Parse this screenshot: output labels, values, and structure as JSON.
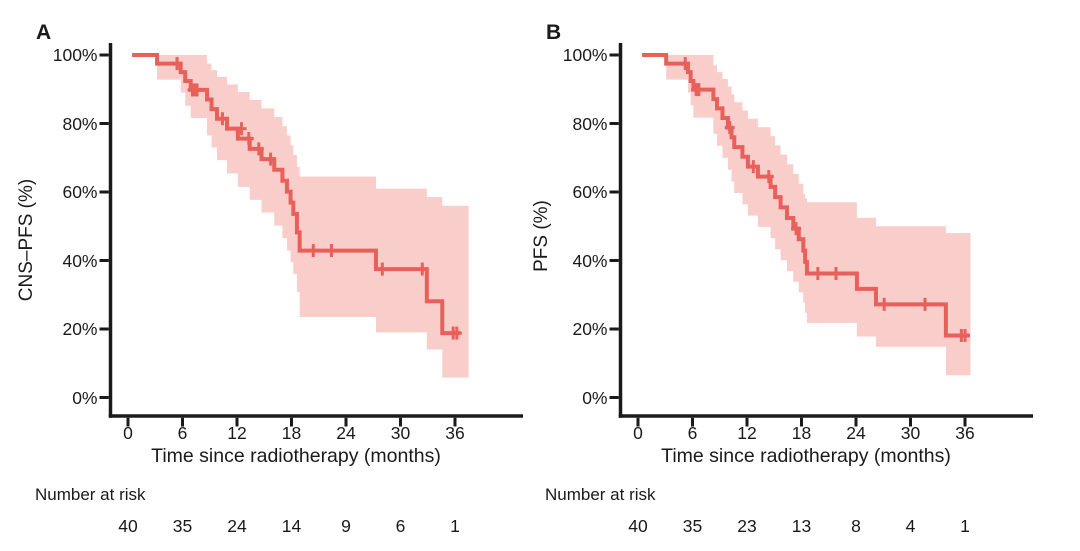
{
  "figure": {
    "background": "#ffffff",
    "axis_color": "#1a1a1a",
    "text_color": "#1a1a1a",
    "line_color": "#e8605b",
    "band_color": "#f9cdc9"
  },
  "chart_data": [
    {
      "type": "line",
      "subtype": "kaplan-meier-step",
      "panel": "A",
      "xlabel": "Time since radiotherapy (months)",
      "ylabel": "CNS–PFS (%)",
      "xlim": [
        0,
        39
      ],
      "ylim": [
        0,
        100
      ],
      "x_ticks": [
        0,
        6,
        12,
        18,
        24,
        30,
        36
      ],
      "y_tick_labels": [
        "100%",
        "80%",
        "60%",
        "40%",
        "20%",
        "0%"
      ],
      "y_tick_values": [
        100,
        80,
        60,
        40,
        20,
        0
      ],
      "grid": "off",
      "legend": "none",
      "start_time": 0.45,
      "end_time": 36.6,
      "band_end_time": 37.5,
      "survival_steps": [
        {
          "t": 3.2,
          "s": 97.5
        },
        {
          "t": 5.8,
          "s": 95.0
        },
        {
          "t": 6.3,
          "s": 92.4
        },
        {
          "t": 6.9,
          "s": 89.8
        },
        {
          "t": 8.7,
          "s": 87.0
        },
        {
          "t": 9.2,
          "s": 84.2
        },
        {
          "t": 9.8,
          "s": 81.4
        },
        {
          "t": 10.9,
          "s": 78.5
        },
        {
          "t": 12.1,
          "s": 75.6
        },
        {
          "t": 13.4,
          "s": 72.6
        },
        {
          "t": 14.7,
          "s": 69.6
        },
        {
          "t": 16.1,
          "s": 66.5
        },
        {
          "t": 17.0,
          "s": 63.3
        },
        {
          "t": 17.5,
          "s": 60.1
        },
        {
          "t": 17.9,
          "s": 56.9
        },
        {
          "t": 18.2,
          "s": 53.6
        },
        {
          "t": 18.6,
          "s": 48.2
        },
        {
          "t": 18.9,
          "s": 42.9
        },
        {
          "t": 27.3,
          "s": 37.5
        },
        {
          "t": 32.9,
          "s": 28.1
        },
        {
          "t": 34.6,
          "s": 18.8
        }
      ],
      "censor_marks": [
        {
          "t": 5.4,
          "s": 97.5
        },
        {
          "t": 7.1,
          "s": 89.8
        },
        {
          "t": 7.35,
          "s": 89.8
        },
        {
          "t": 7.6,
          "s": 89.8
        },
        {
          "t": 10.4,
          "s": 81.4
        },
        {
          "t": 12.5,
          "s": 78.5
        },
        {
          "t": 13.3,
          "s": 75.6
        },
        {
          "t": 14.4,
          "s": 72.6
        },
        {
          "t": 15.7,
          "s": 69.6
        },
        {
          "t": 20.4,
          "s": 42.9
        },
        {
          "t": 22.4,
          "s": 42.9
        },
        {
          "t": 28.0,
          "s": 37.5
        },
        {
          "t": 32.4,
          "s": 37.5
        },
        {
          "t": 35.8,
          "s": 18.8
        },
        {
          "t": 36.2,
          "s": 18.8
        }
      ],
      "confidence_band": [
        {
          "t": 3.2,
          "lo": 92.8,
          "hi": 100
        },
        {
          "t": 5.8,
          "lo": 89.0,
          "hi": 100
        },
        {
          "t": 6.3,
          "lo": 85.2,
          "hi": 100
        },
        {
          "t": 6.9,
          "lo": 81.6,
          "hi": 100
        },
        {
          "t": 8.7,
          "lo": 76.5,
          "hi": 97.5
        },
        {
          "t": 9.2,
          "lo": 73.0,
          "hi": 95.6
        },
        {
          "t": 9.8,
          "lo": 69.3,
          "hi": 93.6
        },
        {
          "t": 10.9,
          "lo": 65.4,
          "hi": 91.4
        },
        {
          "t": 12.1,
          "lo": 61.5,
          "hi": 89.2
        },
        {
          "t": 13.4,
          "lo": 57.7,
          "hi": 86.9
        },
        {
          "t": 14.7,
          "lo": 54.0,
          "hi": 84.4
        },
        {
          "t": 16.1,
          "lo": 50.2,
          "hi": 81.9
        },
        {
          "t": 17.0,
          "lo": 46.5,
          "hi": 79.2
        },
        {
          "t": 17.5,
          "lo": 42.9,
          "hi": 76.5
        },
        {
          "t": 17.9,
          "lo": 39.5,
          "hi": 73.7
        },
        {
          "t": 18.2,
          "lo": 36.1,
          "hi": 70.8
        },
        {
          "t": 18.6,
          "lo": 30.8,
          "hi": 67.3
        },
        {
          "t": 18.9,
          "lo": 23.5,
          "hi": 64.5
        },
        {
          "t": 27.3,
          "lo": 19.0,
          "hi": 61.0
        },
        {
          "t": 32.9,
          "lo": 14.0,
          "hi": 58.5
        },
        {
          "t": 34.6,
          "lo": 5.8,
          "hi": 56.0
        }
      ],
      "number_at_risk": {
        "label": "Number at risk",
        "times": [
          0,
          6,
          12,
          18,
          24,
          30,
          36
        ],
        "counts": [
          40,
          35,
          24,
          14,
          9,
          6,
          1
        ]
      }
    },
    {
      "type": "line",
      "subtype": "kaplan-meier-step",
      "panel": "B",
      "xlabel": "Time since radiotherapy (months)",
      "ylabel": "PFS (%)",
      "xlim": [
        0,
        39
      ],
      "ylim": [
        0,
        100
      ],
      "x_ticks": [
        0,
        6,
        12,
        18,
        24,
        30,
        36
      ],
      "y_tick_labels": [
        "100%",
        "80%",
        "60%",
        "40%",
        "20%",
        "0%"
      ],
      "y_tick_values": [
        100,
        80,
        60,
        40,
        20,
        0
      ],
      "grid": "off",
      "legend": "none",
      "start_time": 0.45,
      "end_time": 36.5,
      "band_end_time": 36.6,
      "survival_steps": [
        {
          "t": 3.1,
          "s": 97.5
        },
        {
          "t": 5.5,
          "s": 95.0
        },
        {
          "t": 5.8,
          "s": 92.4
        },
        {
          "t": 6.1,
          "s": 89.9
        },
        {
          "t": 8.3,
          "s": 87.1
        },
        {
          "t": 8.7,
          "s": 84.4
        },
        {
          "t": 9.3,
          "s": 81.6
        },
        {
          "t": 9.9,
          "s": 78.8
        },
        {
          "t": 10.3,
          "s": 76.0
        },
        {
          "t": 10.6,
          "s": 73.1
        },
        {
          "t": 11.5,
          "s": 70.3
        },
        {
          "t": 12.1,
          "s": 67.4
        },
        {
          "t": 13.2,
          "s": 64.5
        },
        {
          "t": 14.6,
          "s": 61.5
        },
        {
          "t": 15.1,
          "s": 58.5
        },
        {
          "t": 15.7,
          "s": 55.5
        },
        {
          "t": 16.4,
          "s": 52.4
        },
        {
          "t": 17.1,
          "s": 49.3
        },
        {
          "t": 17.7,
          "s": 46.2
        },
        {
          "t": 18.2,
          "s": 42.9
        },
        {
          "t": 18.4,
          "s": 39.6
        },
        {
          "t": 18.6,
          "s": 36.2
        },
        {
          "t": 24.1,
          "s": 31.7
        },
        {
          "t": 26.2,
          "s": 27.2
        },
        {
          "t": 33.9,
          "s": 18.1
        }
      ],
      "censor_marks": [
        {
          "t": 5.2,
          "s": 97.5
        },
        {
          "t": 6.4,
          "s": 89.9
        },
        {
          "t": 6.7,
          "s": 89.9
        },
        {
          "t": 10.1,
          "s": 78.8
        },
        {
          "t": 12.7,
          "s": 67.4
        },
        {
          "t": 14.4,
          "s": 64.5
        },
        {
          "t": 17.4,
          "s": 49.3
        },
        {
          "t": 19.8,
          "s": 36.2
        },
        {
          "t": 21.8,
          "s": 36.2
        },
        {
          "t": 27.1,
          "s": 27.2
        },
        {
          "t": 31.6,
          "s": 27.2
        },
        {
          "t": 35.6,
          "s": 18.1
        },
        {
          "t": 36.0,
          "s": 18.1
        }
      ],
      "confidence_band": [
        {
          "t": 3.1,
          "lo": 92.8,
          "hi": 100
        },
        {
          "t": 5.5,
          "lo": 89.0,
          "hi": 100
        },
        {
          "t": 5.8,
          "lo": 85.3,
          "hi": 100
        },
        {
          "t": 6.1,
          "lo": 81.7,
          "hi": 100
        },
        {
          "t": 8.3,
          "lo": 77.0,
          "hi": 97.0
        },
        {
          "t": 8.7,
          "lo": 73.5,
          "hi": 95.0
        },
        {
          "t": 9.3,
          "lo": 70.0,
          "hi": 93.0
        },
        {
          "t": 9.9,
          "lo": 66.5,
          "hi": 90.8
        },
        {
          "t": 10.3,
          "lo": 63.0,
          "hi": 88.5
        },
        {
          "t": 10.6,
          "lo": 59.7,
          "hi": 86.2
        },
        {
          "t": 11.5,
          "lo": 56.4,
          "hi": 83.8
        },
        {
          "t": 12.1,
          "lo": 53.1,
          "hi": 81.4
        },
        {
          "t": 13.2,
          "lo": 49.8,
          "hi": 78.9
        },
        {
          "t": 14.6,
          "lo": 46.5,
          "hi": 76.3
        },
        {
          "t": 15.1,
          "lo": 43.3,
          "hi": 73.6
        },
        {
          "t": 15.7,
          "lo": 40.1,
          "hi": 70.9
        },
        {
          "t": 16.4,
          "lo": 36.9,
          "hi": 68.1
        },
        {
          "t": 17.1,
          "lo": 33.8,
          "hi": 65.3
        },
        {
          "t": 17.7,
          "lo": 30.7,
          "hi": 62.4
        },
        {
          "t": 18.2,
          "lo": 27.7,
          "hi": 59.4
        },
        {
          "t": 18.4,
          "lo": 24.7,
          "hi": 58.2
        },
        {
          "t": 18.6,
          "lo": 21.8,
          "hi": 57.0
        },
        {
          "t": 24.1,
          "lo": 17.8,
          "hi": 52.5
        },
        {
          "t": 26.2,
          "lo": 14.8,
          "hi": 50.0
        },
        {
          "t": 33.9,
          "lo": 6.5,
          "hi": 48.0
        }
      ],
      "number_at_risk": {
        "label": "Number at risk",
        "times": [
          0,
          6,
          12,
          18,
          24,
          30,
          36
        ],
        "counts": [
          40,
          35,
          23,
          13,
          8,
          4,
          1
        ]
      }
    }
  ]
}
